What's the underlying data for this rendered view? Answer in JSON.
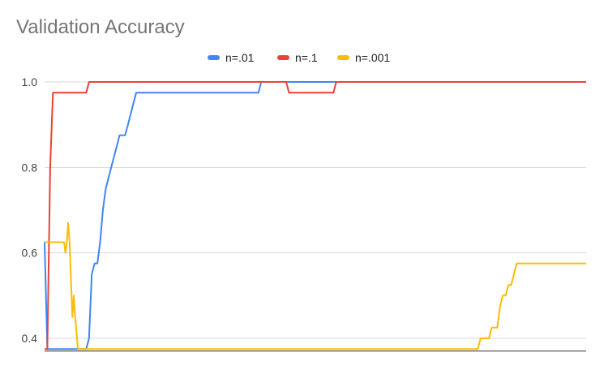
{
  "title": "Validation Accuracy",
  "chart_data": {
    "type": "line",
    "title": "Validation Accuracy",
    "xlabel": "",
    "ylabel": "",
    "ylim": [
      0.37,
      1.02
    ],
    "xlim": [
      0,
      195
    ],
    "yticks": [
      {
        "value": 1.0,
        "label": "1.0"
      },
      {
        "value": 0.8,
        "label": "0.8"
      },
      {
        "value": 0.6,
        "label": "0.6"
      },
      {
        "value": 0.4,
        "label": "0.4"
      }
    ],
    "grid": true,
    "legend": "top-center",
    "series": [
      {
        "name": "n=.01",
        "color": "#4285F4",
        "points": [
          [
            0,
            0.625
          ],
          [
            1,
            0.375
          ],
          [
            15,
            0.375
          ],
          [
            16,
            0.4
          ],
          [
            17,
            0.55
          ],
          [
            18,
            0.575
          ],
          [
            19,
            0.575
          ],
          [
            20,
            0.625
          ],
          [
            21,
            0.7
          ],
          [
            22,
            0.75
          ],
          [
            23,
            0.775
          ],
          [
            24,
            0.8
          ],
          [
            25,
            0.825
          ],
          [
            26,
            0.85
          ],
          [
            27,
            0.875
          ],
          [
            29,
            0.875
          ],
          [
            30,
            0.9
          ],
          [
            31,
            0.925
          ],
          [
            32,
            0.95
          ],
          [
            33,
            0.975
          ],
          [
            77,
            0.975
          ],
          [
            78,
            1.0
          ],
          [
            195,
            1.0
          ]
        ]
      },
      {
        "name": "n=.1",
        "color": "#EA4335",
        "points": [
          [
            0,
            0.375
          ],
          [
            1,
            0.375
          ],
          [
            2,
            0.8
          ],
          [
            3,
            0.975
          ],
          [
            15,
            0.975
          ],
          [
            16,
            1.0
          ],
          [
            87,
            1.0
          ],
          [
            88,
            0.975
          ],
          [
            104,
            0.975
          ],
          [
            105,
            1.0
          ],
          [
            195,
            1.0
          ]
        ]
      },
      {
        "name": "n=.001",
        "color": "#FBBC04",
        "points": [
          [
            0,
            0.625
          ],
          [
            7,
            0.625
          ],
          [
            7.5,
            0.6
          ],
          [
            8,
            0.625
          ],
          [
            8.5,
            0.67
          ],
          [
            9,
            0.625
          ],
          [
            10,
            0.45
          ],
          [
            10.5,
            0.5
          ],
          [
            11,
            0.45
          ],
          [
            12,
            0.375
          ],
          [
            156,
            0.375
          ],
          [
            157,
            0.4
          ],
          [
            160,
            0.4
          ],
          [
            161,
            0.425
          ],
          [
            163,
            0.425
          ],
          [
            164,
            0.475
          ],
          [
            165,
            0.5
          ],
          [
            166,
            0.5
          ],
          [
            167,
            0.525
          ],
          [
            168,
            0.525
          ],
          [
            169,
            0.55
          ],
          [
            170,
            0.575
          ],
          [
            195,
            0.575
          ]
        ]
      }
    ]
  }
}
